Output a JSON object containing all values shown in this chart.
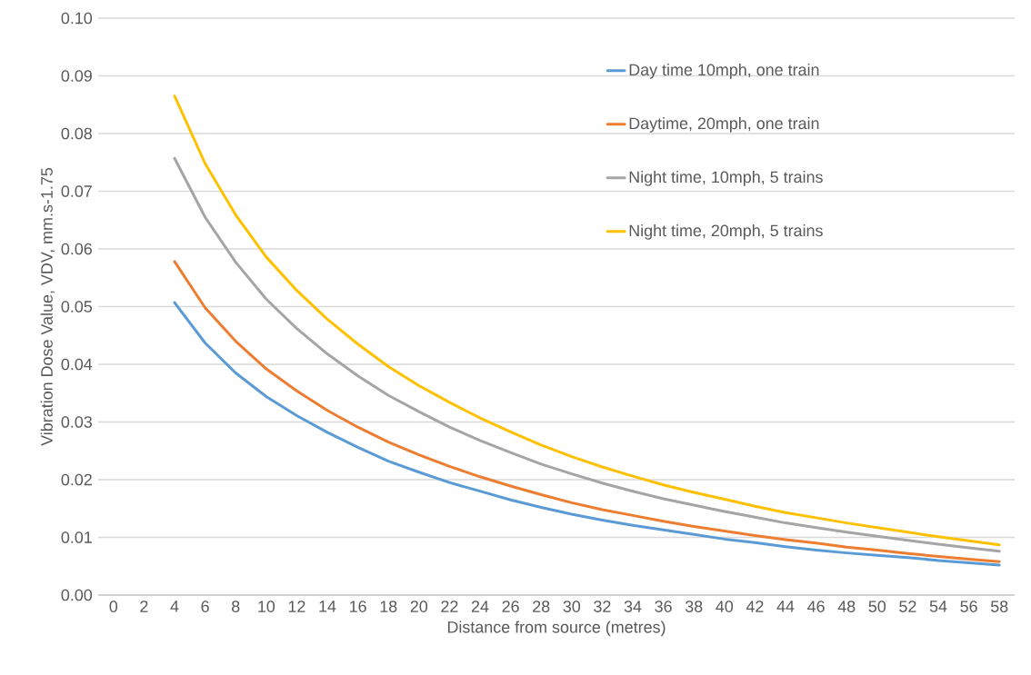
{
  "chart_data": {
    "type": "line",
    "xlabel": "Distance from source (metres)",
    "ylabel": "Vibration Dose Value, VDV, mm.s-1.75",
    "categories": [
      "0",
      "2",
      "4",
      "6",
      "8",
      "10",
      "12",
      "14",
      "16",
      "18",
      "20",
      "22",
      "24",
      "26",
      "28",
      "30",
      "32",
      "34",
      "36",
      "38",
      "40",
      "42",
      "44",
      "46",
      "48",
      "50",
      "52",
      "54",
      "56",
      "58"
    ],
    "series": [
      {
        "name": "Day time 10mph, one train",
        "color": "#5b9bd5",
        "values": [
          null,
          null,
          0.0507,
          0.0437,
          0.0385,
          0.0344,
          0.0311,
          0.0282,
          0.0256,
          0.0232,
          0.0213,
          0.0195,
          0.018,
          0.0165,
          0.0152,
          0.014,
          0.013,
          0.0121,
          0.0113,
          0.0105,
          0.0097,
          0.0091,
          0.0084,
          0.0078,
          0.0073,
          0.0069,
          0.0065,
          0.006,
          0.0056,
          0.0052
        ]
      },
      {
        "name": "Daytime, 20mph, one train",
        "color": "#ed7d31",
        "values": [
          null,
          null,
          0.0578,
          0.0498,
          0.044,
          0.0392,
          0.0354,
          0.032,
          0.0291,
          0.0265,
          0.0243,
          0.0223,
          0.0205,
          0.0189,
          0.0174,
          0.016,
          0.0148,
          0.0138,
          0.0128,
          0.0119,
          0.0111,
          0.0103,
          0.0096,
          0.009,
          0.0083,
          0.0078,
          0.0072,
          0.0067,
          0.0062,
          0.0058
        ]
      },
      {
        "name": "Night time, 10mph, 5 trains",
        "color": "#a5a5a5",
        "values": [
          null,
          null,
          0.0757,
          0.0655,
          0.0577,
          0.0513,
          0.0462,
          0.0418,
          0.038,
          0.0346,
          0.0318,
          0.0291,
          0.0268,
          0.0247,
          0.0227,
          0.021,
          0.0194,
          0.018,
          0.0167,
          0.0156,
          0.0145,
          0.0135,
          0.0125,
          0.0117,
          0.0109,
          0.0102,
          0.0095,
          0.0088,
          0.0082,
          0.0076
        ]
      },
      {
        "name": "Night time, 20mph, 5 trains",
        "color": "#ffc000",
        "values": [
          null,
          null,
          0.0865,
          0.0748,
          0.0659,
          0.0586,
          0.0528,
          0.0478,
          0.0435,
          0.0396,
          0.0363,
          0.0334,
          0.0307,
          0.0283,
          0.026,
          0.024,
          0.0222,
          0.0206,
          0.0191,
          0.0178,
          0.0166,
          0.0154,
          0.0143,
          0.0134,
          0.0125,
          0.0117,
          0.0109,
          0.0101,
          0.0094,
          0.0087
        ]
      }
    ],
    "ylim": [
      0,
      0.1
    ],
    "yticks": [
      {
        "value": 0,
        "label": "0.00"
      },
      {
        "value": 0.01,
        "label": "0.01"
      },
      {
        "value": 0.02,
        "label": "0.02"
      },
      {
        "value": 0.03,
        "label": "0.03"
      },
      {
        "value": 0.04,
        "label": "0.04"
      },
      {
        "value": 0.05,
        "label": "0.05"
      },
      {
        "value": 0.06,
        "label": "0.06"
      },
      {
        "value": 0.07,
        "label": "0.07"
      },
      {
        "value": 0.08,
        "label": "0.08"
      },
      {
        "value": 0.09,
        "label": "0.09"
      },
      {
        "value": 0.1,
        "label": "0.10"
      }
    ],
    "grid": "y",
    "legend": "top right",
    "marker": "none",
    "line_style": "solid"
  }
}
